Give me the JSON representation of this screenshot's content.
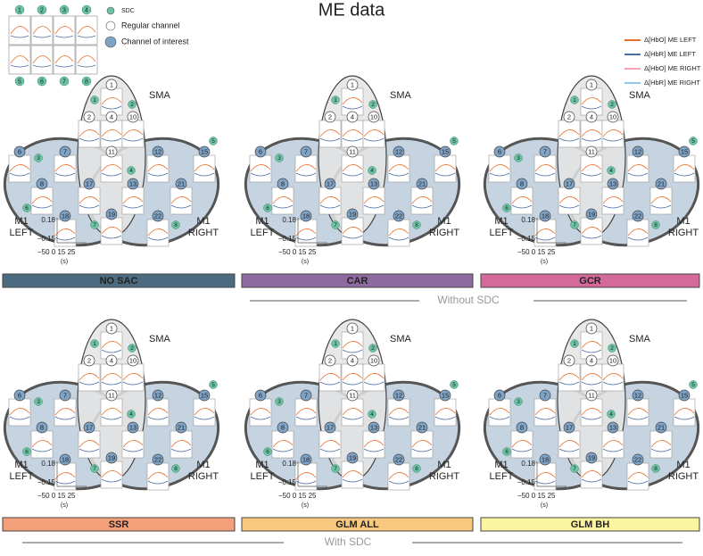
{
  "title": "ME data",
  "legend": {
    "sdc": "SDC",
    "regular": "Regular channel",
    "interest": "Channel of interest",
    "signals": [
      {
        "name": "Δ[HbO] ME LEFT",
        "color": "#e8702a"
      },
      {
        "name": "Δ[HbR] ME LEFT",
        "color": "#4a6fa5"
      },
      {
        "name": "Δ[HbO] ME RIGHT",
        "color": "#f4a3b3"
      },
      {
        "name": "Δ[HbR] ME RIGHT",
        "color": "#8fc8ea"
      }
    ]
  },
  "map": {
    "sma": "SMA",
    "m1_left": [
      "M1",
      "LEFT"
    ],
    "m1_right": [
      "M1",
      "RIGHT"
    ],
    "y_ticks": [
      "0.18",
      "−0.15"
    ],
    "x_ticks": "−50 0 15 25",
    "x_unit": "(s)",
    "regular_channels": [
      "1",
      "2",
      "4",
      "10",
      "11"
    ],
    "interest_channels": [
      "6",
      "7",
      "12",
      "15",
      "8",
      "17",
      "13",
      "21",
      "18",
      "19",
      "22"
    ],
    "sdc": [
      "1",
      "2",
      "3",
      "4",
      "5",
      "6",
      "7",
      "8"
    ]
  },
  "groups": [
    {
      "label": "Without SDC",
      "panels": [
        {
          "label": "NO SAC",
          "color": "#4d6b80"
        },
        {
          "label": "CAR",
          "color": "#8e6aa0"
        },
        {
          "label": "GCR",
          "color": "#d46a9a"
        }
      ]
    },
    {
      "label": "With SDC",
      "panels": [
        {
          "label": "SSR",
          "color": "#f4a07a"
        },
        {
          "label": "GLM ALL",
          "color": "#f7c87e"
        },
        {
          "label": "GLM BH",
          "color": "#fbf5a0"
        }
      ]
    }
  ]
}
